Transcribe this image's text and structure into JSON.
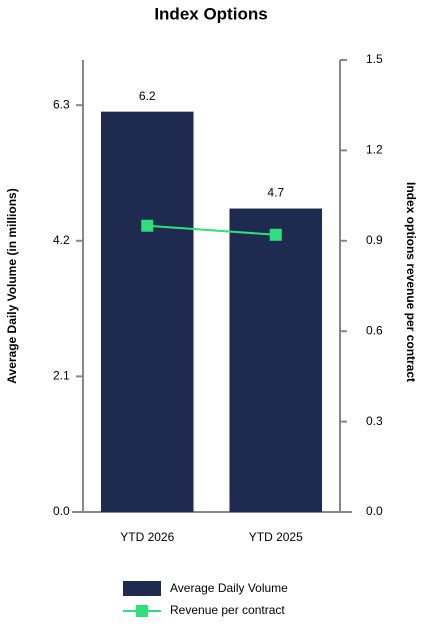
{
  "chart_data": {
    "type": "bar-line",
    "title": "Index Options",
    "categories": [
      "YTD 2026",
      "YTD 2025"
    ],
    "series": [
      {
        "name": "Average Daily Volume",
        "type": "bar",
        "color": "#1f2a50",
        "values": [
          6.2,
          4.7
        ]
      },
      {
        "name": "Revenue per contract",
        "type": "line",
        "axis": "y2",
        "color": "#2ee07a",
        "values": [
          0.95,
          0.92
        ]
      }
    ],
    "ylabel": "Average Daily Volume (in millions)",
    "y2label": "Index options revenue per contract",
    "ylim": [
      0,
      7.0
    ],
    "yticks": [
      {
        "value": 0,
        "label": "0.0"
      },
      2.1,
      4.2,
      6.3
    ],
    "y2lim": [
      0,
      1.5
    ],
    "y2ticks": [
      {
        "value": 0,
        "label": "0.0"
      },
      0.3,
      0.6,
      0.9,
      1.2,
      1.5
    ],
    "legend": "bottom"
  }
}
